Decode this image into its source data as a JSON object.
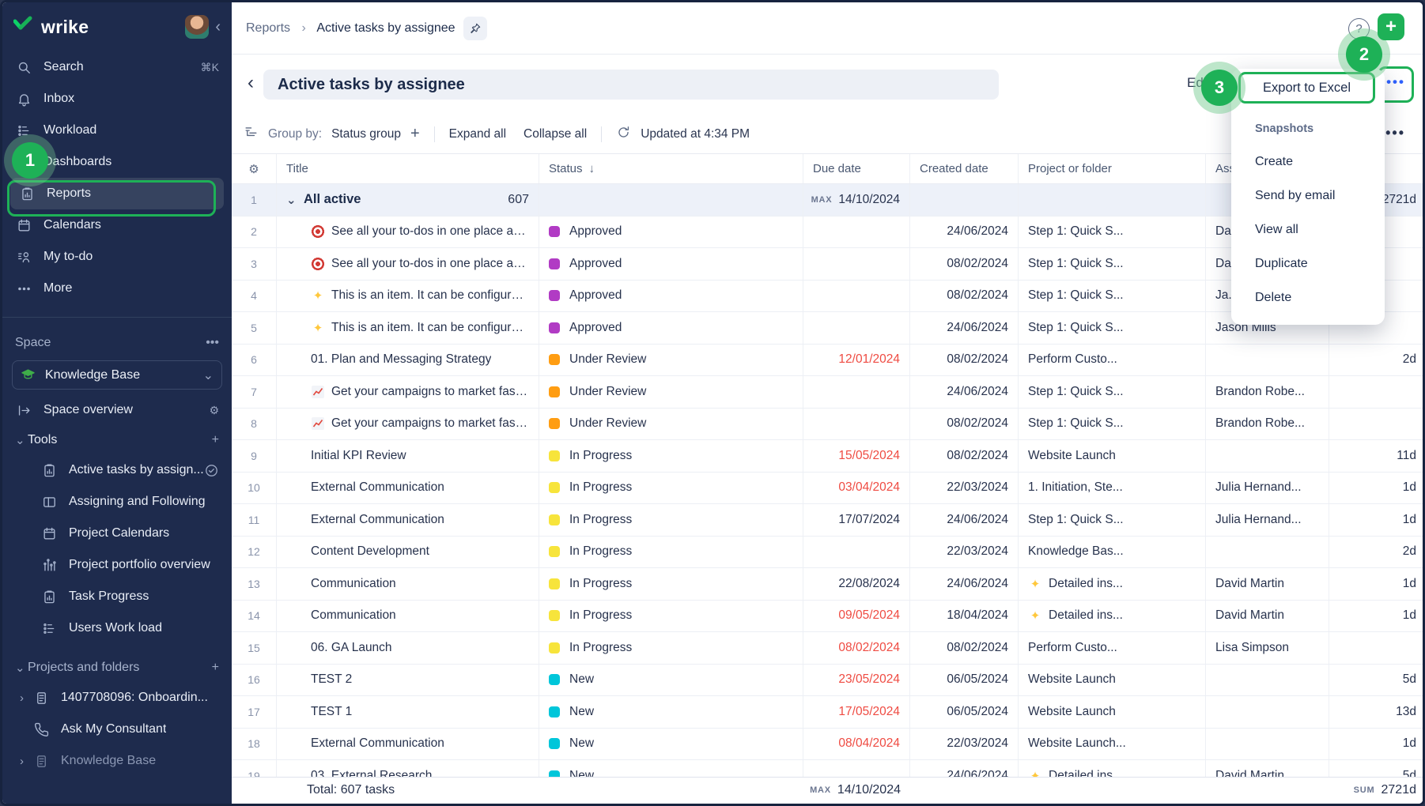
{
  "colors": {
    "accent_green": "#1eb157",
    "sidebar_navy": "#1e2b4d",
    "overdue_red": "#ef4b42",
    "dots_blue": "#2f62ff"
  },
  "sidebar": {
    "logo_text": "wrike",
    "nav": [
      {
        "icon": "search",
        "label": "Search",
        "shortcut": "⌘K"
      },
      {
        "icon": "bell",
        "label": "Inbox"
      },
      {
        "icon": "workload",
        "label": "Workload"
      },
      {
        "icon": "grid",
        "label": "Dashboards"
      },
      {
        "icon": "report",
        "label": "Reports",
        "selected": true
      },
      {
        "icon": "calendar",
        "label": "Calendars"
      },
      {
        "icon": "todo",
        "label": "My to-do"
      },
      {
        "icon": "more",
        "label": "More"
      }
    ],
    "space": {
      "label": "Space",
      "name": "Knowledge Base",
      "overview": "Space overview"
    },
    "tools": {
      "label": "Tools",
      "items": [
        {
          "icon": "report",
          "label": "Active tasks by assign...",
          "check": true
        },
        {
          "icon": "columns",
          "label": "Assigning and Following"
        },
        {
          "icon": "calendar",
          "label": "Project Calendars"
        },
        {
          "icon": "portfolio",
          "label": "Project portfolio overview"
        },
        {
          "icon": "report",
          "label": "Task Progress"
        },
        {
          "icon": "workload",
          "label": "Users Work load"
        }
      ]
    },
    "projects": {
      "label": "Projects and folders",
      "items": [
        {
          "icon": "doc",
          "label": "1407708096: Onboardin...",
          "expand": true
        },
        {
          "icon": "phone",
          "label": "Ask My Consultant"
        },
        {
          "icon": "doc",
          "label": "Knowledge Base",
          "expand": true,
          "dim": true
        }
      ]
    }
  },
  "header": {
    "breadcrumb": [
      "Reports",
      "Active tasks by assignee"
    ],
    "help": "?"
  },
  "titlebar": {
    "title": "Active tasks by assignee",
    "edit_label": "Edit"
  },
  "toolbar": {
    "group_by_label": "Group by:",
    "group_by_value": "Status group",
    "expand_all": "Expand all",
    "collapse_all": "Collapse all",
    "updated": "Updated at 4:34 PM"
  },
  "menu": {
    "export_label": "Export to Excel",
    "section_label": "Snapshots",
    "items": [
      "Create",
      "Send by email",
      "View all",
      "Duplicate",
      "Delete"
    ]
  },
  "annotations": {
    "step1": "1",
    "step2": "2",
    "step3": "3"
  },
  "table": {
    "columns": [
      "Title",
      "Status",
      "Due date",
      "Created date",
      "Project or folder",
      "Assignee"
    ],
    "group_row": {
      "num": "1",
      "title": "All active",
      "count": "607",
      "due_prefix": "MAX",
      "due": "14/10/2024",
      "duration": "2721d"
    },
    "status_colors": {
      "Approved": "#b13bc4",
      "Under Review": "#ff9d12",
      "In Progress": "#f7e43b",
      "New": "#00c6da"
    },
    "rows": [
      {
        "n": "2",
        "icon": "target",
        "title": "See all your to-dos in one place and get them...",
        "status": "Approved",
        "due": "",
        "overdue": false,
        "created": "24/06/2024",
        "project": "Step 1: Quick S...",
        "picon": "",
        "assignee": "Da...",
        "dur": ""
      },
      {
        "n": "3",
        "icon": "target",
        "title": "See all your to-dos in one place and get them...",
        "status": "Approved",
        "due": "",
        "overdue": false,
        "created": "08/02/2024",
        "project": "Step 1: Quick S...",
        "picon": "",
        "assignee": "Da...",
        "dur": ""
      },
      {
        "n": "4",
        "icon": "sparkles",
        "title": "This is an item. It can be configured to reflect ...",
        "status": "Approved",
        "due": "",
        "overdue": false,
        "created": "08/02/2024",
        "project": "Step 1: Quick S...",
        "picon": "",
        "assignee": "Ja...",
        "dur": ""
      },
      {
        "n": "5",
        "icon": "sparkles",
        "title": "This is an item. It can be configured to reflect ...",
        "status": "Approved",
        "due": "",
        "overdue": false,
        "created": "24/06/2024",
        "project": "Step 1: Quick S...",
        "picon": "",
        "assignee": "Jason Mills",
        "dur": ""
      },
      {
        "n": "6",
        "icon": "",
        "title": "01. Plan and Messaging Strategy",
        "status": "Under Review",
        "due": "12/01/2024",
        "overdue": true,
        "created": "08/02/2024",
        "project": "Perform Custo...",
        "picon": "",
        "assignee": "",
        "dur": "2d"
      },
      {
        "n": "7",
        "icon": "chart",
        "title": "Get your campaigns to market faster. Track p...",
        "status": "Under Review",
        "due": "",
        "overdue": false,
        "created": "24/06/2024",
        "project": "Step 1: Quick S...",
        "picon": "",
        "assignee": "Brandon Robe...",
        "dur": ""
      },
      {
        "n": "8",
        "icon": "chart",
        "title": "Get your campaigns to market faster. Track p...",
        "status": "Under Review",
        "due": "",
        "overdue": false,
        "created": "08/02/2024",
        "project": "Step 1: Quick S...",
        "picon": "",
        "assignee": "Brandon Robe...",
        "dur": ""
      },
      {
        "n": "9",
        "icon": "",
        "title": "Initial KPI Review",
        "status": "In Progress",
        "due": "15/05/2024",
        "overdue": true,
        "created": "08/02/2024",
        "project": "Website Launch",
        "picon": "",
        "assignee": "",
        "dur": "11d"
      },
      {
        "n": "10",
        "icon": "",
        "title": "External Communication",
        "status": "In Progress",
        "due": "03/04/2024",
        "overdue": true,
        "created": "22/03/2024",
        "project": "1. Initiation, Ste...",
        "picon": "",
        "assignee": "Julia Hernand...",
        "dur": "1d"
      },
      {
        "n": "11",
        "icon": "",
        "title": "External Communication",
        "status": "In Progress",
        "due": "17/07/2024",
        "overdue": false,
        "created": "24/06/2024",
        "project": "Step 1: Quick S...",
        "picon": "",
        "assignee": "Julia Hernand...",
        "dur": "1d"
      },
      {
        "n": "12",
        "icon": "",
        "title": "Content Development",
        "status": "In Progress",
        "due": "",
        "overdue": false,
        "created": "22/03/2024",
        "project": "Knowledge Bas...",
        "picon": "",
        "assignee": "",
        "dur": "2d"
      },
      {
        "n": "13",
        "icon": "",
        "title": "Communication",
        "status": "In Progress",
        "due": "22/08/2024",
        "overdue": false,
        "created": "24/06/2024",
        "project": "Detailed ins...",
        "picon": "sparkles",
        "assignee": "David Martin",
        "dur": "1d"
      },
      {
        "n": "14",
        "icon": "",
        "title": "Communication",
        "status": "In Progress",
        "due": "09/05/2024",
        "overdue": true,
        "created": "18/04/2024",
        "project": "Detailed ins...",
        "picon": "sparkles",
        "assignee": "David Martin",
        "dur": "1d"
      },
      {
        "n": "15",
        "icon": "",
        "title": "06. GA Launch",
        "status": "In Progress",
        "due": "08/02/2024",
        "overdue": true,
        "created": "08/02/2024",
        "project": "Perform Custo...",
        "picon": "",
        "assignee": "Lisa Simpson",
        "dur": ""
      },
      {
        "n": "16",
        "icon": "",
        "title": "TEST 2",
        "status": "New",
        "due": "23/05/2024",
        "overdue": true,
        "created": "06/05/2024",
        "project": "Website Launch",
        "picon": "",
        "assignee": "",
        "dur": "5d"
      },
      {
        "n": "17",
        "icon": "",
        "title": "TEST 1",
        "status": "New",
        "due": "17/05/2024",
        "overdue": true,
        "created": "06/05/2024",
        "project": "Website Launch",
        "picon": "",
        "assignee": "",
        "dur": "13d"
      },
      {
        "n": "18",
        "icon": "",
        "title": "External Communication",
        "status": "New",
        "due": "08/04/2024",
        "overdue": true,
        "created": "22/03/2024",
        "project": "Website Launch...",
        "picon": "",
        "assignee": "",
        "dur": "1d"
      },
      {
        "n": "19",
        "icon": "",
        "title": "03. External Research",
        "status": "New",
        "due": "",
        "overdue": false,
        "created": "24/06/2024",
        "project": "Detailed ins...",
        "picon": "sparkles",
        "assignee": "David Martin",
        "dur": "5d"
      }
    ],
    "footer": {
      "total": "Total: 607 tasks",
      "max_label": "MAX",
      "max_value": "14/10/2024",
      "sum_label": "SUM",
      "sum_value": "2721d"
    }
  }
}
